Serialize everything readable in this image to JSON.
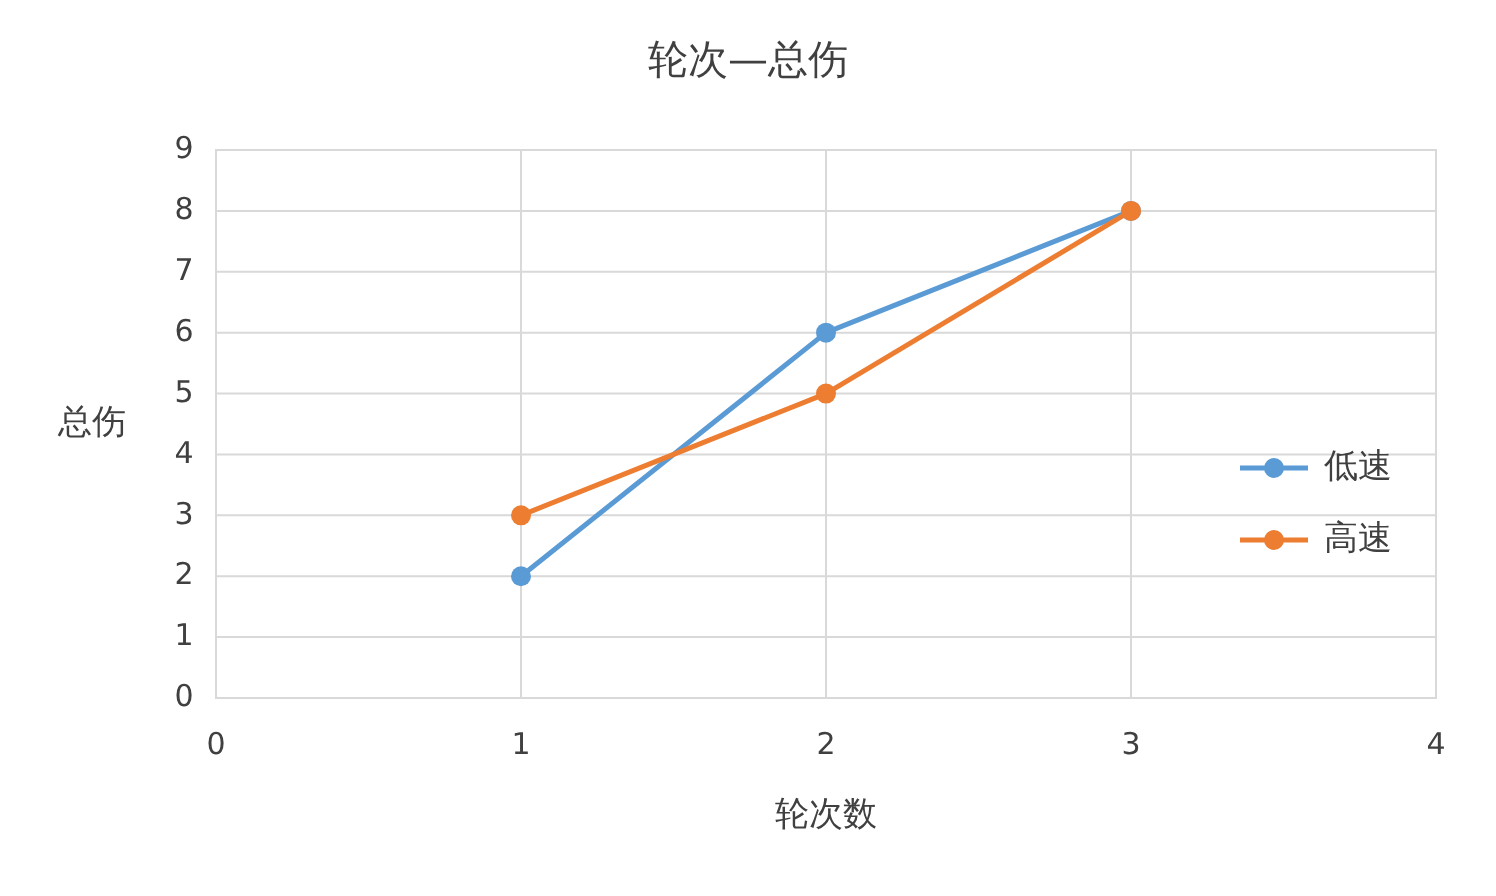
{
  "chart_data": {
    "type": "line",
    "title": "轮次—总伤",
    "xlabel": "轮次数",
    "ylabel": "总伤",
    "x": [
      1,
      2,
      3
    ],
    "series": [
      {
        "name": "低速",
        "color": "#5b9bd5",
        "values": [
          2,
          6,
          8
        ]
      },
      {
        "name": "高速",
        "color": "#ed7d31",
        "values": [
          3,
          5,
          8
        ]
      }
    ],
    "xlim": [
      0,
      4
    ],
    "xticks": [
      0,
      1,
      2,
      3,
      4
    ],
    "ylim": [
      0,
      9
    ],
    "yticks": [
      0,
      1,
      2,
      3,
      4,
      5,
      6,
      7,
      8,
      9
    ],
    "grid": true,
    "legend": "right",
    "marker": "circle",
    "line_style": "solid"
  }
}
